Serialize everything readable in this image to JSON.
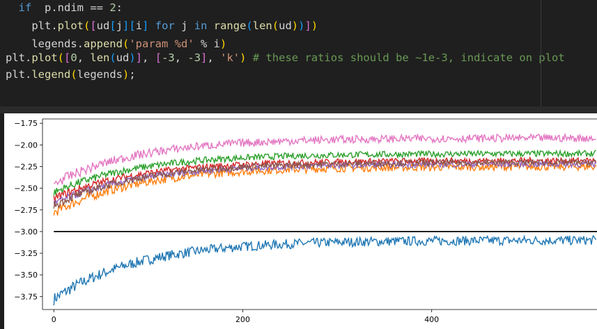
{
  "code": {
    "lines": [
      {
        "indent": "  ",
        "tokens": [
          [
            "kw",
            "if"
          ],
          [
            "",
            "  p.ndim == "
          ],
          [
            "num",
            "2"
          ],
          [
            "",
            ":"
          ]
        ]
      },
      {
        "indent": "    ",
        "tokens": [
          [
            "",
            "plt."
          ],
          [
            "fn",
            "plot"
          ],
          [
            "br1",
            "("
          ],
          [
            "br2",
            "["
          ],
          [
            "",
            "ud"
          ],
          [
            "br3",
            "["
          ],
          [
            "",
            "j"
          ],
          [
            "br3",
            "]"
          ],
          [
            "br3",
            "["
          ],
          [
            "",
            "i"
          ],
          [
            "br3",
            "]"
          ],
          [
            "kw",
            " for "
          ],
          [
            "",
            "j "
          ],
          [
            "kw",
            "in "
          ],
          [
            "fn",
            "range"
          ],
          [
            "br3",
            "("
          ],
          [
            "fn",
            "len"
          ],
          [
            "br1",
            "("
          ],
          [
            "",
            "ud"
          ],
          [
            "br1",
            ")"
          ],
          [
            "br3",
            ")"
          ],
          [
            "br2",
            "]"
          ],
          [
            "br1",
            ")"
          ]
        ]
      },
      {
        "indent": "    ",
        "tokens": [
          [
            "",
            "legends."
          ],
          [
            "fn",
            "append"
          ],
          [
            "br1",
            "("
          ],
          [
            "str",
            "'param %d'"
          ],
          [
            "",
            " % i"
          ],
          [
            "br1",
            ")"
          ]
        ]
      },
      {
        "indent": "",
        "tokens": [
          [
            "",
            "plt."
          ],
          [
            "fn",
            "plot"
          ],
          [
            "br1",
            "("
          ],
          [
            "br2",
            "["
          ],
          [
            "num",
            "0"
          ],
          [
            "",
            ", "
          ],
          [
            "fn",
            "len"
          ],
          [
            "br3",
            "("
          ],
          [
            "",
            "ud"
          ],
          [
            "br3",
            ")"
          ],
          [
            "br2",
            "]"
          ],
          [
            "",
            ", "
          ],
          [
            "br2",
            "["
          ],
          [
            "num",
            "-3"
          ],
          [
            "",
            ", "
          ],
          [
            "num",
            "-3"
          ],
          [
            "br2",
            "]"
          ],
          [
            "",
            ", "
          ],
          [
            "str",
            "'k'"
          ],
          [
            "br1",
            ")"
          ],
          [
            "cm",
            " # these ratios should be ~1e-3, indicate on plot"
          ]
        ]
      },
      {
        "indent": "",
        "tokens": [
          [
            "",
            "plt."
          ],
          [
            "fn",
            "legend"
          ],
          [
            "br1",
            "("
          ],
          [
            "",
            "legends"
          ],
          [
            "br1",
            ")"
          ],
          [
            "",
            ";"
          ]
        ]
      }
    ]
  },
  "chart_data": {
    "type": "line",
    "title": "",
    "xlabel": "",
    "ylabel": "",
    "xlim": [
      -12,
      575
    ],
    "ylim": [
      -3.9,
      -1.7
    ],
    "xticks": [
      0,
      200,
      400
    ],
    "yticks": [
      -1.75,
      -2.0,
      -2.25,
      -2.5,
      -2.75,
      -3.0,
      -3.25,
      -3.5,
      -3.75
    ],
    "n_points": 575,
    "series": [
      {
        "color": "#1f77b4",
        "start": -3.78,
        "end": -3.1,
        "noise": 0.06
      },
      {
        "color": "#ff7f0e",
        "start": -2.78,
        "end": -2.25,
        "noise": 0.05
      },
      {
        "color": "#2ca02c",
        "start": -2.55,
        "end": -2.1,
        "noise": 0.04
      },
      {
        "color": "#d62728",
        "start": -2.62,
        "end": -2.18,
        "noise": 0.04
      },
      {
        "color": "#9467bd",
        "start": -2.68,
        "end": -2.22,
        "noise": 0.04
      },
      {
        "color": "#8c564b",
        "start": -2.7,
        "end": -2.2,
        "noise": 0.04
      },
      {
        "color": "#e377c2",
        "start": -2.45,
        "end": -1.92,
        "noise": 0.05
      },
      {
        "color": "#000000",
        "constant": -3.0,
        "x_range": [
          0,
          575
        ]
      }
    ]
  }
}
